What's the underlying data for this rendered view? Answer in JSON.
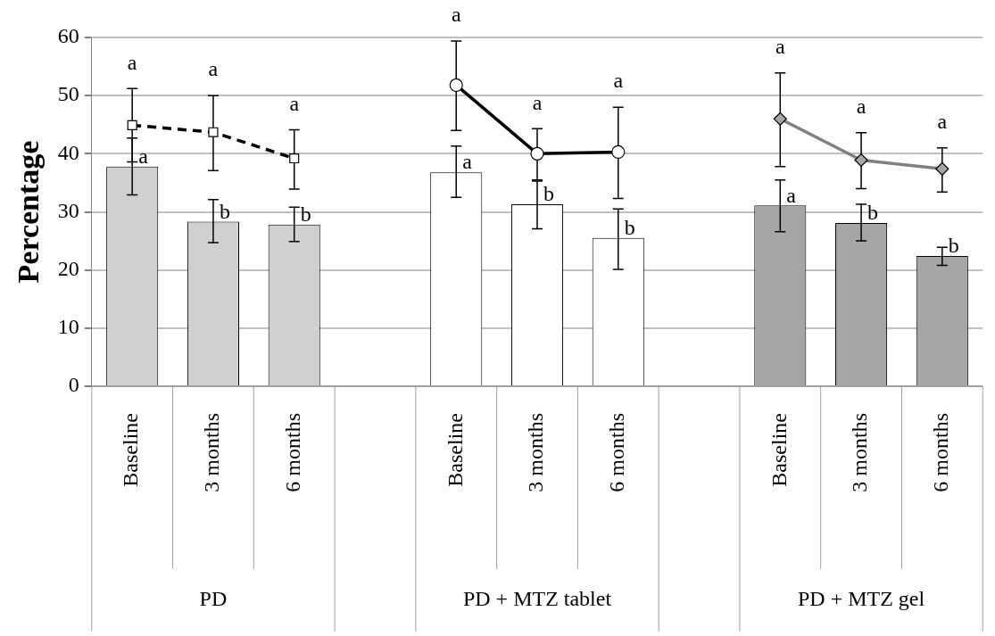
{
  "chart_data": {
    "type": "bar",
    "ylabel": "Percentage",
    "categories": [
      "Baseline",
      "3 months",
      "6 months",
      null,
      "Baseline",
      "3 months",
      "6 months",
      null,
      "Baseline",
      "3 months",
      "6 months"
    ],
    "annotations": [
      "PD",
      "PD + MTZ tablet",
      "PD + MTZ gel"
    ],
    "ylim": [
      0,
      60
    ],
    "yticks": [
      0,
      10,
      20,
      30,
      40,
      50,
      60
    ],
    "grid": "y",
    "legend": false,
    "series": [
      {
        "colors": [
          "#d0d0d0",
          "#d0d0d0",
          "#d0d0d0",
          null,
          "#ffffff",
          "#ffffff",
          "#ffffff",
          null,
          "#a6a6a6",
          "#a6a6a6",
          "#a6a6a6"
        ],
        "values": [
          37.8,
          28.3,
          27.8,
          null,
          36.8,
          31.3,
          25.5,
          null,
          31.1,
          28.1,
          22.4
        ],
        "errors": [
          [
            32.9,
            42.7
          ],
          [
            24.7,
            32.1
          ],
          [
            24.9,
            30.8
          ],
          null,
          [
            32.5,
            41.3
          ],
          [
            27.1,
            35.3
          ],
          [
            20.1,
            30.5
          ],
          null,
          [
            26.6,
            35.5
          ],
          [
            25.0,
            31.3
          ],
          [
            20.8,
            23.9
          ]
        ],
        "value_labels": [
          "a",
          "b",
          "b",
          null,
          "a",
          "b",
          "b",
          null,
          "a",
          "b",
          "b"
        ]
      },
      {
        "type": "line",
        "color": "#000000",
        "marker": "square",
        "line_style": "dashed",
        "values": [
          44.9,
          43.7,
          39.2,
          null,
          null,
          null,
          null,
          null,
          null,
          null,
          null
        ],
        "errors": [
          [
            38.6,
            51.2
          ],
          [
            37.1,
            50.0
          ],
          [
            33.9,
            44.1
          ],
          null,
          null,
          null,
          null,
          null,
          null,
          null,
          null
        ],
        "value_labels": [
          "a",
          "a",
          "a",
          null,
          null,
          null,
          null,
          null,
          null,
          null,
          null
        ]
      },
      {
        "type": "line",
        "color": "#000000",
        "marker": "circle",
        "line_style": "solid",
        "values": [
          null,
          null,
          null,
          null,
          51.8,
          40.0,
          40.3,
          null,
          null,
          null,
          null
        ],
        "errors": [
          null,
          null,
          null,
          null,
          [
            44.0,
            59.4
          ],
          [
            35.5,
            44.3
          ],
          [
            32.3,
            48.0
          ],
          null,
          null,
          null,
          null
        ],
        "value_labels": [
          null,
          null,
          null,
          null,
          "a",
          "a",
          "a",
          null,
          null,
          null,
          null
        ]
      },
      {
        "type": "line",
        "color": "#808080",
        "marker": "diamond",
        "line_style": "solid",
        "values": [
          null,
          null,
          null,
          null,
          null,
          null,
          null,
          null,
          46.0,
          38.9,
          37.4
        ],
        "errors": [
          null,
          null,
          null,
          null,
          null,
          null,
          null,
          null,
          [
            37.8,
            53.9
          ],
          [
            34.0,
            43.6
          ],
          [
            33.4,
            41.0
          ]
        ],
        "value_labels": [
          null,
          null,
          null,
          null,
          null,
          null,
          null,
          null,
          "a",
          "a",
          "a"
        ]
      }
    ]
  }
}
